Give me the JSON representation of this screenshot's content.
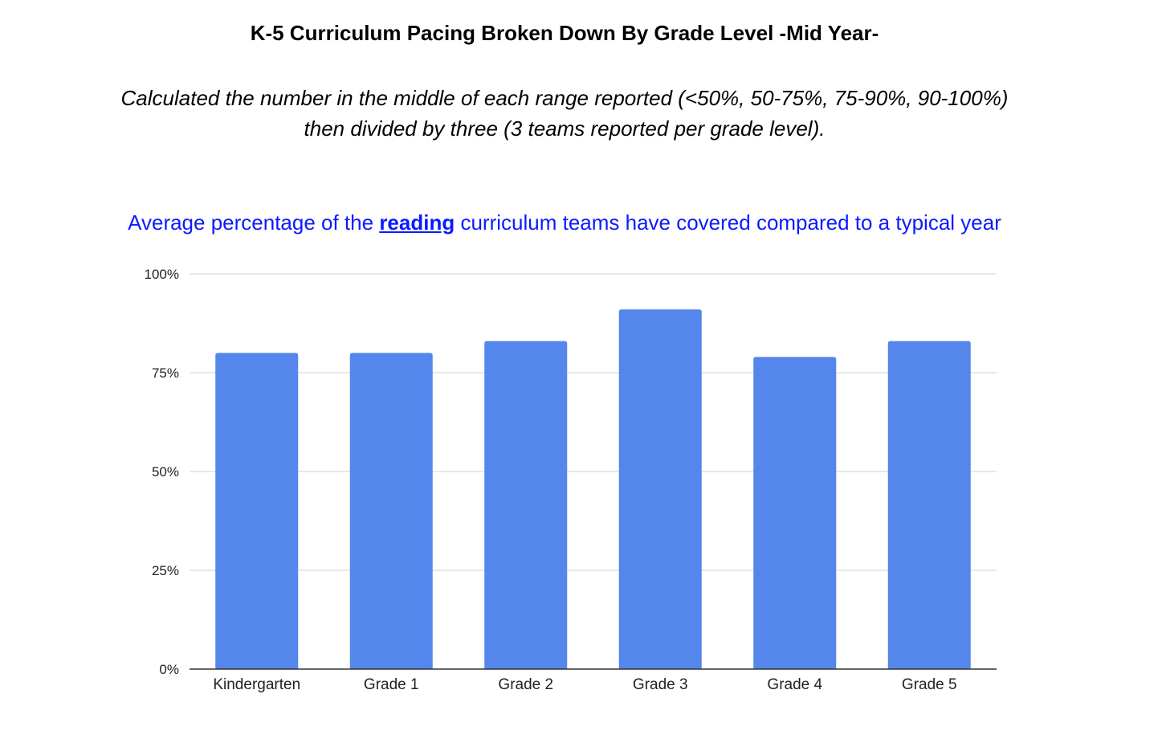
{
  "header": {
    "title": "K-5 Curriculum Pacing Broken Down By Grade Level -Mid Year-",
    "subtitle_line1": "Calculated the number in the middle of each range reported (<50%, 50-75%, 75-90%, 90-100%)",
    "subtitle_line2": "then divided by three (3 teams reported per grade level)."
  },
  "chart_data": {
    "type": "bar",
    "title_parts": {
      "before": "Average percentage of the ",
      "keyword": "reading",
      "after": " curriculum teams have covered compared to a typical year"
    },
    "categories": [
      "Kindergarten",
      "Grade 1",
      "Grade 2",
      "Grade 3",
      "Grade 4",
      "Grade 5"
    ],
    "values": [
      80,
      80,
      83,
      91,
      79,
      83
    ],
    "ylim": [
      0,
      100
    ],
    "yticks": [
      0,
      25,
      50,
      75,
      100
    ],
    "ytick_labels": [
      "0%",
      "25%",
      "50%",
      "75%",
      "100%"
    ],
    "xlabel": "",
    "ylabel": "",
    "grid": true,
    "legend": "none",
    "colors": {
      "bar": "#5586EB",
      "title": "#0B1BFF",
      "grid": "#D9D9D9",
      "axis": "#333333",
      "tick_text": "#222222"
    }
  }
}
